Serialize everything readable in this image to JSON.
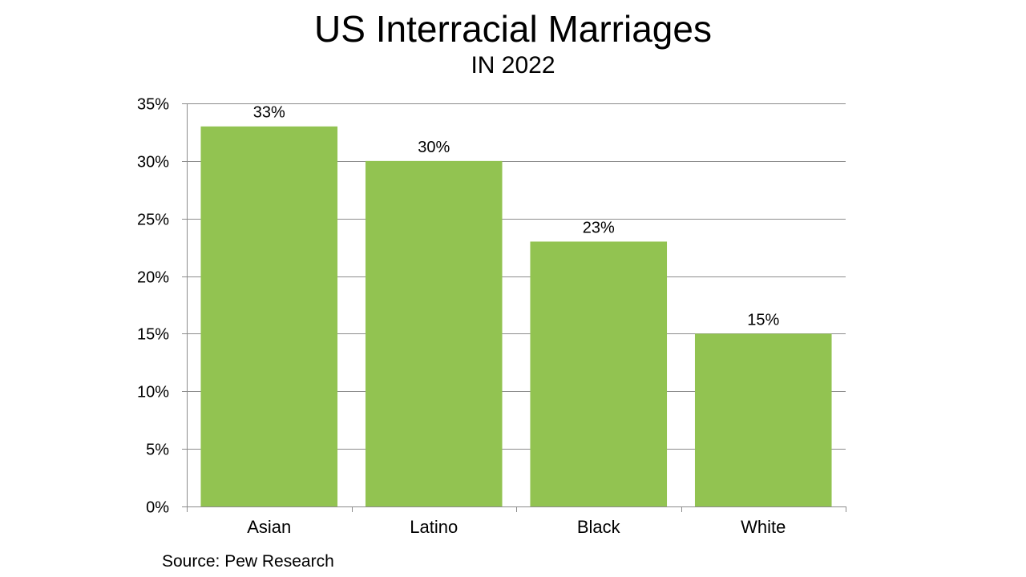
{
  "title": "US Interracial Marriages",
  "subtitle": "IN 2022",
  "source": "Source: Pew Research",
  "colors": {
    "bar": "#92C351",
    "grid": "#8C8C8C",
    "text": "#000000"
  },
  "chart_data": {
    "type": "bar",
    "categories": [
      "Asian",
      "Latino",
      "Black",
      "White"
    ],
    "values": [
      33,
      30,
      23,
      15
    ],
    "data_labels": [
      "33%",
      "30%",
      "23%",
      "15%"
    ],
    "title": "US Interracial Marriages",
    "subtitle": "IN 2022",
    "xlabel": "",
    "ylabel": "",
    "ylim": [
      0,
      35
    ],
    "yticks": [
      0,
      5,
      10,
      15,
      20,
      25,
      30,
      35
    ],
    "ytick_labels": [
      "0%",
      "5%",
      "10%",
      "15%",
      "20%",
      "25%",
      "30%",
      "35%"
    ],
    "grid": true,
    "legend": "none"
  }
}
